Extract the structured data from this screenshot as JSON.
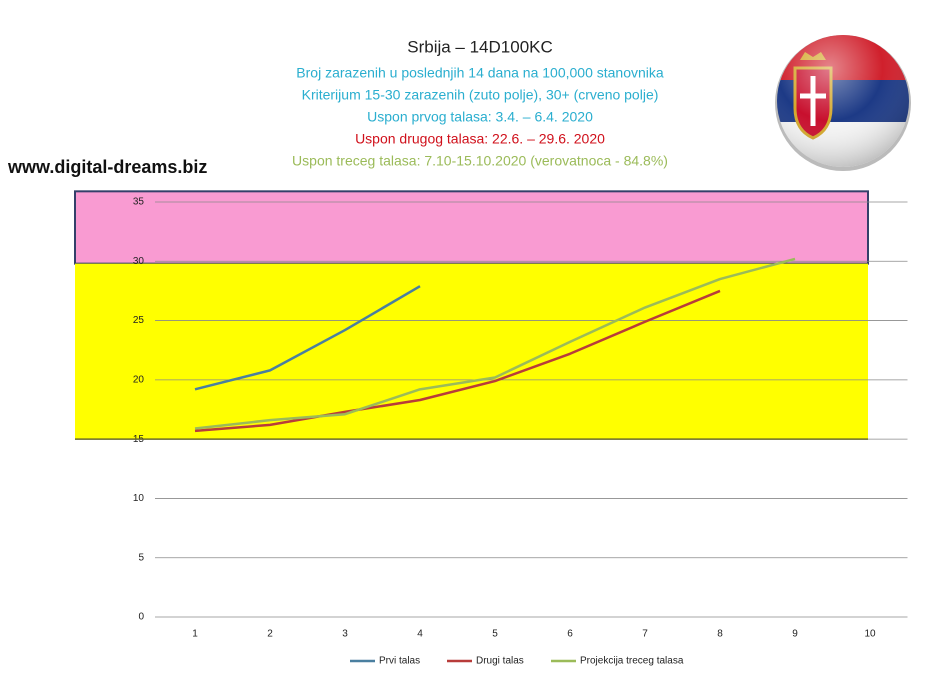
{
  "chart_data": {
    "type": "line",
    "title": "Srbija – 14D100KC",
    "subtitles": [
      "Broj zarazenih u poslednjih 14 dana na 100,000 stanovnika",
      "Kriterijum 15-30 zarazenih (zuto polje), 30+ (crveno polje)",
      "Uspon prvog talasa: 3.4. – 6.4. 2020",
      "Uspon drugog talasa: 22.6. – 29.6. 2020",
      "Uspon treceg talasa: 7.10-15.10.2020 (verovatnoca -  84.8%)"
    ],
    "subtitle_colors": [
      "#2aaecf",
      "#2aaecf",
      "#2aaecf",
      "#d0101b",
      "#9bbb59"
    ],
    "source": "www.digital-dreams.biz",
    "categories": [
      1,
      2,
      3,
      4,
      5,
      6,
      7,
      8,
      9,
      10
    ],
    "series": [
      {
        "name": "Prvi talas",
        "color": "#4a7fa0",
        "values": [
          19.2,
          20.8,
          24.2,
          27.9,
          null,
          null,
          null,
          null,
          null,
          null
        ]
      },
      {
        "name": "Drugi talas",
        "color": "#b83c3a",
        "values": [
          15.7,
          16.2,
          17.3,
          18.3,
          19.9,
          22.2,
          24.9,
          27.5,
          null,
          null
        ]
      },
      {
        "name": "Projekcija treceg talasa",
        "color": "#9bbb59",
        "values": [
          15.9,
          16.6,
          17.1,
          19.2,
          20.2,
          23.2,
          26.1,
          28.5,
          30.2,
          null
        ]
      }
    ],
    "bands": [
      {
        "from": 29.8,
        "to": 35.9,
        "color": "#f99bd2"
      },
      {
        "from": 15,
        "to": 29.8,
        "color": "#ffff00"
      }
    ],
    "ylim": [
      0,
      35
    ],
    "yticks": [
      0,
      5,
      10,
      15,
      20,
      25,
      30,
      35
    ],
    "grid": true,
    "legend": "bottom"
  }
}
